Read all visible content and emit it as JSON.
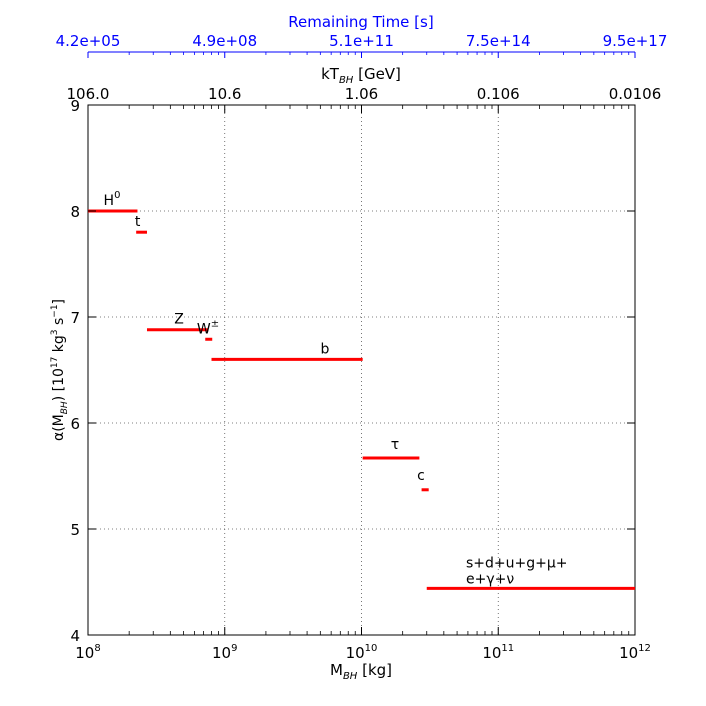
{
  "chart_data": {
    "type": "line",
    "xlabel": "M",
    "xlabel_sub": "BH",
    "xlabel_unit": " [kg]",
    "ylabel": "α(M",
    "ylabel_sub": "BH",
    "ylabel_rest": ") [10",
    "ylabel_sup": "17",
    "ylabel_unit": " kg",
    "ylabel_sup2": "3",
    "ylabel_unit2": " s",
    "ylabel_sup3": "−1",
    "ylabel_end": "]",
    "x_scale": "log",
    "xlim": [
      100000000,
      1000000000000
    ],
    "ylim": [
      4,
      9
    ],
    "x_ticks": [
      {
        "base": "10",
        "exp": "8",
        "value": 100000000
      },
      {
        "base": "10",
        "exp": "9",
        "value": 1000000000
      },
      {
        "base": "10",
        "exp": "10",
        "value": 10000000000
      },
      {
        "base": "10",
        "exp": "11",
        "value": 100000000000
      },
      {
        "base": "10",
        "exp": "12",
        "value": 1000000000000
      }
    ],
    "y_ticks": [
      "4",
      "5",
      "6",
      "7",
      "8",
      "9"
    ],
    "grid": true,
    "top_axis_1": {
      "label": "kT",
      "label_sub": "BH",
      "label_unit": " [GeV]",
      "ticks": [
        "106.0",
        "10.6",
        "1.06",
        "0.106",
        "0.0106"
      ]
    },
    "top_axis_2": {
      "label": "Remaining Time [s]",
      "color": "#0000ff",
      "ticks": [
        "4.2e+05",
        "4.9e+08",
        "5.1e+11",
        "7.5e+14",
        "9.5e+17"
      ]
    },
    "segment_color": "#ff0000",
    "segments": [
      {
        "label": "H",
        "sup": "0",
        "x_start": 100000000,
        "x_end": 230000000,
        "y": 8.0
      },
      {
        "label": "t",
        "sup": "",
        "x_start": 225000000,
        "x_end": 270000000,
        "y": 7.8
      },
      {
        "label": "Z",
        "sup": "",
        "x_start": 270000000,
        "x_end": 760000000,
        "y": 6.88
      },
      {
        "label": "W",
        "sup": "±",
        "x_start": 720000000,
        "x_end": 810000000,
        "y": 6.79
      },
      {
        "label": "b",
        "sup": "",
        "x_start": 800000000,
        "x_end": 10200000000,
        "y": 6.6
      },
      {
        "label": "τ",
        "sup": "",
        "x_start": 10200000000,
        "x_end": 26500000000,
        "y": 5.67
      },
      {
        "label": "c",
        "sup": "",
        "x_start": 27500000000,
        "x_end": 31000000000,
        "y": 5.37
      },
      {
        "label": "s+d+u+g+μ+",
        "label2": "e+γ+ν",
        "sup": "",
        "x_start": 30000000000,
        "x_end": 1000000000000,
        "y": 4.44
      }
    ]
  }
}
